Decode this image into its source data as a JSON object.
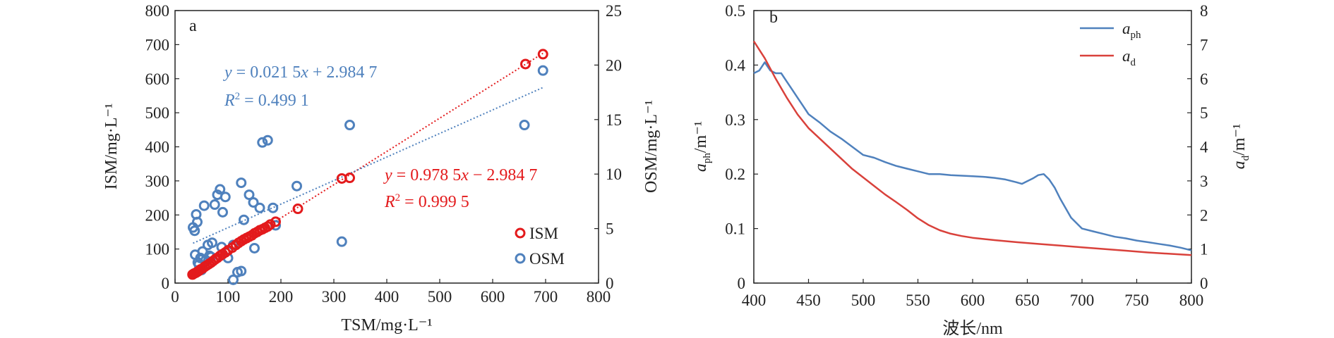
{
  "chart_data": [
    {
      "type": "scatter",
      "panel_label": "a",
      "xlabel": "TSM/mg·L⁻¹",
      "ylabel": "ISM/mg·L⁻¹",
      "ylabel_right": "OSM/mg·L⁻¹",
      "xlim": [
        0,
        800
      ],
      "ylim": [
        0,
        800
      ],
      "ylim_right": [
        0,
        25
      ],
      "x_ticks": [
        0,
        100,
        200,
        300,
        400,
        500,
        600,
        700,
        800
      ],
      "y_ticks": [
        0,
        100,
        200,
        300,
        400,
        500,
        600,
        700,
        800
      ],
      "y_right_ticks": [
        0,
        5,
        10,
        15,
        20,
        25
      ],
      "legend_position": "bottom-right",
      "series": [
        {
          "name": "ISM",
          "axis": "left",
          "color": "#e31a1c",
          "marker": "open-circle",
          "x": [
            33,
            36,
            39,
            42,
            45,
            48,
            52,
            56,
            60,
            64,
            68,
            72,
            76,
            80,
            85,
            90,
            95,
            100,
            108,
            115,
            120,
            125,
            130,
            135,
            140,
            145,
            150,
            155,
            160,
            165,
            170,
            175,
            180,
            190,
            232,
            315,
            330,
            662,
            695
          ],
          "y": [
            25,
            28,
            30,
            33,
            36,
            40,
            43,
            48,
            52,
            56,
            60,
            65,
            70,
            74,
            80,
            85,
            90,
            96,
            104,
            112,
            118,
            123,
            128,
            132,
            136,
            140,
            146,
            150,
            155,
            158,
            162,
            166,
            172,
            180,
            218,
            307,
            309,
            643,
            672
          ],
          "fit": {
            "label_eq_prefix": "y",
            "label_eq_body": " = 0.978 5",
            "label_eq_var": "x",
            "label_eq_tail": " − 2.984 7",
            "r2_label": "R",
            "r2_sup": "2",
            "r2_value": " = 0.999 5",
            "x_range": [
              33,
              695
            ]
          }
        },
        {
          "name": "OSM",
          "axis": "right",
          "color": "#4f81bd",
          "marker": "open-circle",
          "x": [
            34,
            37,
            40,
            42,
            45,
            48,
            50,
            55,
            58,
            62,
            65,
            70,
            75,
            80,
            85,
            90,
            95,
            100,
            110,
            118,
            125,
            130,
            140,
            150,
            160,
            165,
            175,
            185,
            190,
            230,
            315,
            330,
            660,
            695,
            38,
            43,
            52,
            68,
            88,
            110,
            125,
            148
          ],
          "y": [
            5.1,
            4.8,
            6.3,
            5.6,
            1.7,
            2.3,
            1.2,
            7.1,
            2.1,
            3.5,
            2.5,
            3.7,
            7.2,
            8.1,
            8.6,
            6.5,
            7.9,
            2.3,
            0.3,
            1.0,
            9.2,
            5.8,
            8.1,
            3.2,
            6.9,
            12.9,
            13.1,
            6.9,
            5.3,
            8.9,
            3.8,
            14.5,
            14.5,
            19.5,
            2.6,
            1.9,
            2.9,
            2.4,
            3.3,
            3.5,
            1.1,
            7.4
          ],
          "fit": {
            "label_eq_prefix": "y",
            "label_eq_body": " = 0.021 5",
            "label_eq_var": "x",
            "label_eq_tail": " + 2.984 7",
            "r2_label": "R",
            "r2_sup": "2",
            "r2_value": " = 0.499 1",
            "x_range": [
              34,
              695
            ]
          }
        }
      ]
    },
    {
      "type": "line",
      "panel_label": "b",
      "xlabel": "波长/nm",
      "ylabel_main": "a",
      "ylabel_sub": "ph",
      "ylabel_unit": "/m⁻¹",
      "ylabel_right_main": "a",
      "ylabel_right_sub": "d",
      "ylabel_right_unit": "/m⁻¹",
      "xlim": [
        400,
        800
      ],
      "ylim": [
        0,
        0.5
      ],
      "ylim_right": [
        0,
        8
      ],
      "x_ticks": [
        400,
        450,
        500,
        550,
        600,
        650,
        700,
        750,
        800
      ],
      "y_ticks": [
        "0",
        "0.1",
        "0.2",
        "0.3",
        "0.4",
        "0.5"
      ],
      "y_right_ticks": [
        0,
        1,
        2,
        3,
        4,
        5,
        6,
        7,
        8
      ],
      "legend_position": "top-right",
      "series": [
        {
          "name_main": "a",
          "name_sub": "ph",
          "axis": "left",
          "color": "#4f81bd",
          "x": [
            400,
            405,
            410,
            415,
            420,
            425,
            430,
            435,
            440,
            445,
            450,
            460,
            470,
            480,
            490,
            500,
            510,
            520,
            530,
            540,
            550,
            560,
            570,
            580,
            590,
            600,
            610,
            620,
            630,
            640,
            645,
            650,
            655,
            660,
            665,
            670,
            675,
            680,
            690,
            700,
            710,
            720,
            730,
            740,
            750,
            760,
            770,
            780,
            790,
            800
          ],
          "y": [
            0.385,
            0.39,
            0.405,
            0.39,
            0.385,
            0.385,
            0.37,
            0.355,
            0.34,
            0.325,
            0.31,
            0.295,
            0.278,
            0.265,
            0.25,
            0.235,
            0.23,
            0.222,
            0.215,
            0.21,
            0.205,
            0.2,
            0.2,
            0.198,
            0.197,
            0.196,
            0.195,
            0.193,
            0.19,
            0.185,
            0.182,
            0.187,
            0.192,
            0.198,
            0.2,
            0.19,
            0.175,
            0.155,
            0.12,
            0.1,
            0.095,
            0.09,
            0.085,
            0.082,
            0.078,
            0.075,
            0.072,
            0.069,
            0.065,
            0.06
          ]
        },
        {
          "name_main": "a",
          "name_sub": "d",
          "axis": "right",
          "color": "#d9413b",
          "x": [
            400,
            410,
            420,
            430,
            440,
            450,
            460,
            470,
            480,
            490,
            500,
            510,
            520,
            530,
            540,
            550,
            560,
            570,
            580,
            590,
            600,
            620,
            640,
            660,
            680,
            700,
            720,
            740,
            760,
            780,
            800
          ],
          "y": [
            7.1,
            6.6,
            6.0,
            5.45,
            4.95,
            4.55,
            4.25,
            3.95,
            3.65,
            3.35,
            3.1,
            2.85,
            2.6,
            2.38,
            2.15,
            1.9,
            1.7,
            1.55,
            1.45,
            1.38,
            1.33,
            1.26,
            1.2,
            1.15,
            1.1,
            1.05,
            1.0,
            0.95,
            0.9,
            0.86,
            0.82
          ]
        }
      ]
    }
  ]
}
